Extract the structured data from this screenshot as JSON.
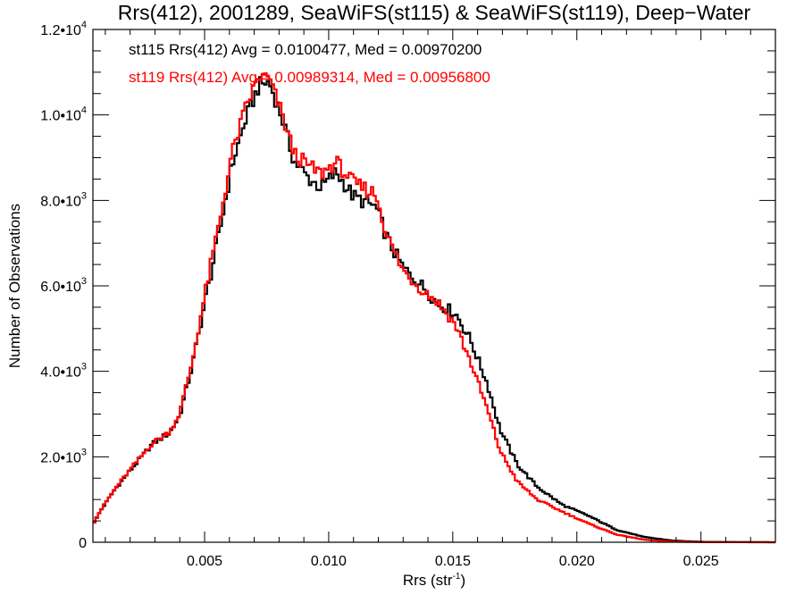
{
  "chart_data": {
    "type": "line",
    "subtype": "step-histogram",
    "title": "Rrs(412), 2001289, SeaWiFS(st115) & SeaWiFS(st119), Deep−Water",
    "xlabel": "Rrs (str",
    "xlabel_sup": "-1",
    "xlabel_end": ")",
    "ylabel": "Number of Observations",
    "xlim": [
      0.0005,
      0.028
    ],
    "ylim": [
      0,
      12000
    ],
    "x_ticks": [
      {
        "value": 0.005,
        "label": "0.005"
      },
      {
        "value": 0.01,
        "label": "0.010"
      },
      {
        "value": 0.015,
        "label": "0.015"
      },
      {
        "value": 0.02,
        "label": "0.020"
      },
      {
        "value": 0.025,
        "label": "0.025"
      }
    ],
    "x_minor_step": 0.001,
    "y_ticks": [
      {
        "value": 0,
        "mant": "0",
        "exp": ""
      },
      {
        "value": 2000,
        "mant": "2.0•10",
        "exp": "3"
      },
      {
        "value": 4000,
        "mant": "4.0•10",
        "exp": "3"
      },
      {
        "value": 6000,
        "mant": "6.0•10",
        "exp": "3"
      },
      {
        "value": 8000,
        "mant": "8.0•10",
        "exp": "3"
      },
      {
        "value": 10000,
        "mant": "1.0•10",
        "exp": "4"
      },
      {
        "value": 12000,
        "mant": "1.2•10",
        "exp": "4"
      }
    ],
    "y_minor_step": 500,
    "bin_width": 0.0001,
    "legend": [
      {
        "text": "st115 Rrs(412) Avg = 0.0100477, Med = 0.00970200",
        "color": "#000000"
      },
      {
        "text": "st119 Rrs(412) Avg = 0.00989314, Med = 0.00956800",
        "color": "#ff0000"
      }
    ],
    "legend_position": "top-left",
    "series": [
      {
        "name": "st115",
        "color": "#000000",
        "points": [
          [
            0.0005,
            418
          ],
          [
            0.0008,
            730
          ],
          [
            0.0014,
            1250
          ],
          [
            0.0022,
            1820
          ],
          [
            0.0029,
            2300
          ],
          [
            0.0036,
            2570
          ],
          [
            0.004,
            2970
          ],
          [
            0.0045,
            4120
          ],
          [
            0.005,
            5580
          ],
          [
            0.0056,
            7250
          ],
          [
            0.0061,
            8820
          ],
          [
            0.0067,
            9970
          ],
          [
            0.0072,
            10700
          ],
          [
            0.0076,
            10770
          ],
          [
            0.0081,
            9970
          ],
          [
            0.0086,
            8930
          ],
          [
            0.0092,
            8510
          ],
          [
            0.0097,
            8300
          ],
          [
            0.0103,
            8660
          ],
          [
            0.011,
            8090
          ],
          [
            0.0119,
            7840
          ],
          [
            0.0124,
            7050
          ],
          [
            0.013,
            6420
          ],
          [
            0.0137,
            6040
          ],
          [
            0.0144,
            5580
          ],
          [
            0.0151,
            5370
          ],
          [
            0.0157,
            4750
          ],
          [
            0.0164,
            3700
          ],
          [
            0.0169,
            2650
          ],
          [
            0.0176,
            1820
          ],
          [
            0.0184,
            1300
          ],
          [
            0.0194,
            880
          ],
          [
            0.0205,
            610
          ],
          [
            0.0216,
            290
          ],
          [
            0.0227,
            125
          ],
          [
            0.0238,
            40
          ],
          [
            0.025,
            10
          ],
          [
            0.028,
            0
          ]
        ]
      },
      {
        "name": "st119",
        "color": "#ff0000",
        "points": [
          [
            0.0005,
            418
          ],
          [
            0.0008,
            740
          ],
          [
            0.0014,
            1260
          ],
          [
            0.0022,
            1840
          ],
          [
            0.0029,
            2320
          ],
          [
            0.0036,
            2590
          ],
          [
            0.004,
            3020
          ],
          [
            0.0045,
            4220
          ],
          [
            0.005,
            5750
          ],
          [
            0.0056,
            7500
          ],
          [
            0.0061,
            9080
          ],
          [
            0.0067,
            10250
          ],
          [
            0.0072,
            10900
          ],
          [
            0.0076,
            10850
          ],
          [
            0.0081,
            10050
          ],
          [
            0.0086,
            9100
          ],
          [
            0.0092,
            8800
          ],
          [
            0.0097,
            8620
          ],
          [
            0.0103,
            8900
          ],
          [
            0.011,
            8400
          ],
          [
            0.0119,
            8150
          ],
          [
            0.0124,
            7100
          ],
          [
            0.013,
            6350
          ],
          [
            0.0137,
            5950
          ],
          [
            0.0144,
            5620
          ],
          [
            0.0151,
            5100
          ],
          [
            0.0157,
            4250
          ],
          [
            0.0164,
            3100
          ],
          [
            0.0169,
            2150
          ],
          [
            0.0176,
            1420
          ],
          [
            0.0184,
            1000
          ],
          [
            0.0194,
            720
          ],
          [
            0.0205,
            430
          ],
          [
            0.0216,
            180
          ],
          [
            0.0227,
            60
          ],
          [
            0.0238,
            15
          ],
          [
            0.025,
            3
          ],
          [
            0.028,
            0
          ]
        ]
      }
    ]
  }
}
